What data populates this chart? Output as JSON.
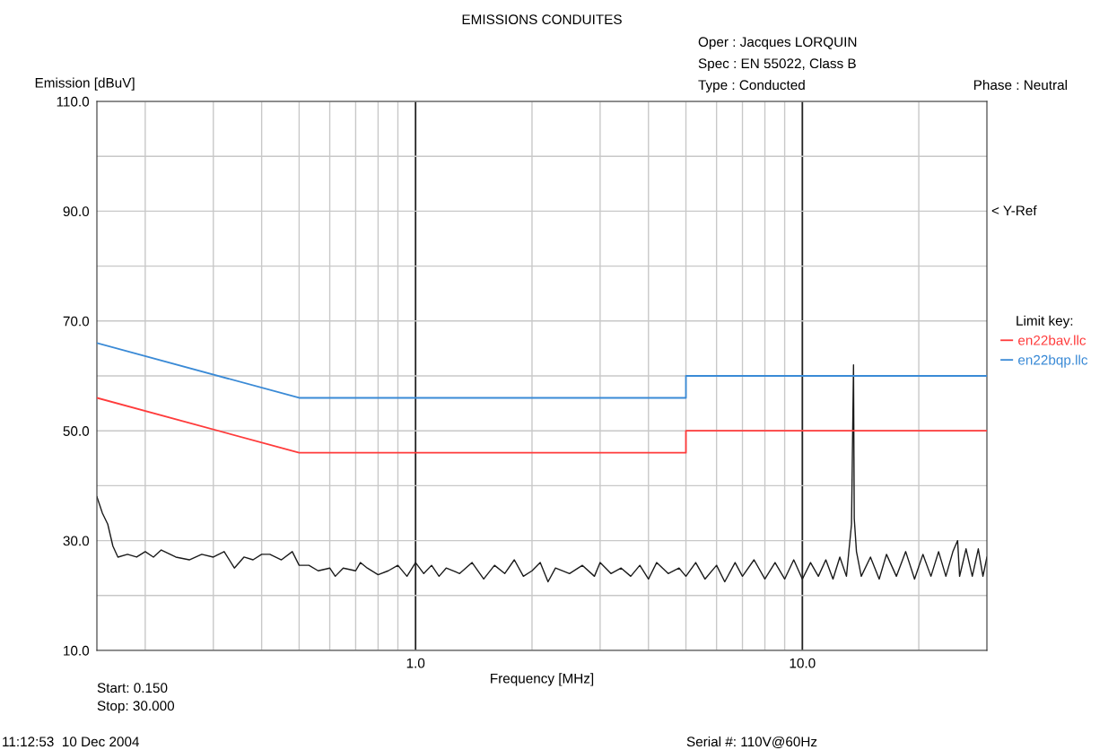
{
  "chart_data": {
    "type": "line",
    "title": "EMISSIONS CONDUITES",
    "xlabel": "Frequency [MHz]",
    "ylabel": "Emission [dBuV]",
    "legend_title": "Limit key:",
    "legend": "right",
    "log": "x",
    "grid": true,
    "marker": "none",
    "line_style": "solid",
    "xlim": [
      0.15,
      30
    ],
    "ylim": [
      10,
      110
    ],
    "xticks": [
      {
        "value": 0.2,
        "label": null
      },
      {
        "value": 0.3,
        "label": null
      },
      {
        "value": 0.4,
        "label": null
      },
      {
        "value": 0.5,
        "label": null
      },
      {
        "value": 0.6,
        "label": null
      },
      {
        "value": 0.7,
        "label": null
      },
      {
        "value": 0.8,
        "label": null
      },
      {
        "value": 0.9,
        "label": null
      },
      {
        "value": 1,
        "label": "1.0"
      },
      {
        "value": 2,
        "label": null
      },
      {
        "value": 3,
        "label": null
      },
      {
        "value": 4,
        "label": null
      },
      {
        "value": 5,
        "label": null
      },
      {
        "value": 6,
        "label": null
      },
      {
        "value": 7,
        "label": null
      },
      {
        "value": 8,
        "label": null
      },
      {
        "value": 9,
        "label": null
      },
      {
        "value": 10,
        "label": "10.0"
      },
      {
        "value": 20,
        "label": null
      }
    ],
    "yticks": [
      {
        "value": 10,
        "label": "10.0"
      },
      {
        "value": 20,
        "label": null
      },
      {
        "value": 30,
        "label": "30.0"
      },
      {
        "value": 40,
        "label": null
      },
      {
        "value": 50,
        "label": "50.0"
      },
      {
        "value": 60,
        "label": null
      },
      {
        "value": 70,
        "label": "70.0"
      },
      {
        "value": 80,
        "label": null
      },
      {
        "value": 90,
        "label": "90.0"
      },
      {
        "value": 100,
        "label": null
      },
      {
        "value": 110,
        "label": "110.0"
      }
    ],
    "annotations": [
      "Oper : Jacques LORQUIN",
      "Spec : EN 55022, Class B",
      "Type : Conducted",
      "Phase : Neutral",
      "< Y-Ref",
      "Start: 0.150",
      "Stop: 30.000",
      "11:12:53  10 Dec 2004",
      "Serial #: 110V@60Hz"
    ],
    "series": [
      {
        "name": "en22bav.llc",
        "color": "#ff3b3b",
        "x": [
          0.15,
          0.5,
          5,
          5,
          30
        ],
        "values": [
          56,
          46,
          46,
          50,
          50
        ]
      },
      {
        "name": "en22bqp.llc",
        "color": "#3a8ad6",
        "x": [
          0.15,
          0.5,
          5,
          5,
          30
        ],
        "values": [
          66,
          56,
          56,
          60,
          60
        ]
      },
      {
        "color": "#1a1a1a",
        "x": [
          0.15,
          0.155,
          0.16,
          0.165,
          0.17,
          0.18,
          0.19,
          0.2,
          0.21,
          0.22,
          0.24,
          0.26,
          0.28,
          0.3,
          0.32,
          0.34,
          0.36,
          0.38,
          0.4,
          0.42,
          0.45,
          0.48,
          0.5,
          0.53,
          0.56,
          0.6,
          0.62,
          0.65,
          0.7,
          0.72,
          0.75,
          0.8,
          0.85,
          0.9,
          0.95,
          1.0,
          1.05,
          1.1,
          1.15,
          1.2,
          1.3,
          1.4,
          1.5,
          1.6,
          1.7,
          1.8,
          1.9,
          2.0,
          2.1,
          2.2,
          2.3,
          2.5,
          2.7,
          2.9,
          3.0,
          3.2,
          3.4,
          3.6,
          3.8,
          4.0,
          4.2,
          4.5,
          4.8,
          5.0,
          5.3,
          5.6,
          6.0,
          6.3,
          6.7,
          7.0,
          7.5,
          8.0,
          8.5,
          9.0,
          9.5,
          10,
          10.5,
          11,
          11.5,
          12,
          12.5,
          13,
          13.4,
          13.56,
          13.62,
          13.8,
          14.2,
          15,
          15.8,
          16.5,
          17.5,
          18.5,
          19.5,
          20.5,
          21.5,
          22.5,
          23.5,
          24.5,
          25.2,
          25.5,
          26.5,
          27.5,
          28.5,
          29.3,
          30
        ],
        "values": [
          38,
          35,
          33,
          29,
          27,
          27.5,
          27,
          28,
          27,
          28.3,
          27,
          26.5,
          27.5,
          27,
          28,
          25,
          27,
          26.5,
          27.5,
          27.5,
          26.5,
          28,
          25.5,
          25.5,
          24.5,
          25,
          23.5,
          25,
          24.5,
          26,
          25,
          23.8,
          24.5,
          25.5,
          23.5,
          26,
          24,
          25.5,
          23.5,
          25,
          24,
          26,
          23,
          25.5,
          24,
          26.5,
          23.5,
          24.5,
          26,
          22.5,
          25,
          24,
          25.5,
          23.5,
          26,
          24,
          25,
          23.5,
          25.5,
          23,
          26,
          24,
          25,
          23.5,
          26,
          23,
          25.5,
          22.5,
          26,
          23.5,
          26.5,
          23,
          26,
          23,
          26.5,
          23,
          26,
          23.5,
          26.5,
          23,
          27,
          23.5,
          33,
          62,
          34,
          28,
          23.5,
          27,
          23,
          27.5,
          23.5,
          28,
          23,
          27.5,
          23.5,
          28,
          23.5,
          28,
          30,
          23.5,
          28.5,
          23.5,
          28.5,
          23.5,
          27
        ]
      }
    ]
  }
}
